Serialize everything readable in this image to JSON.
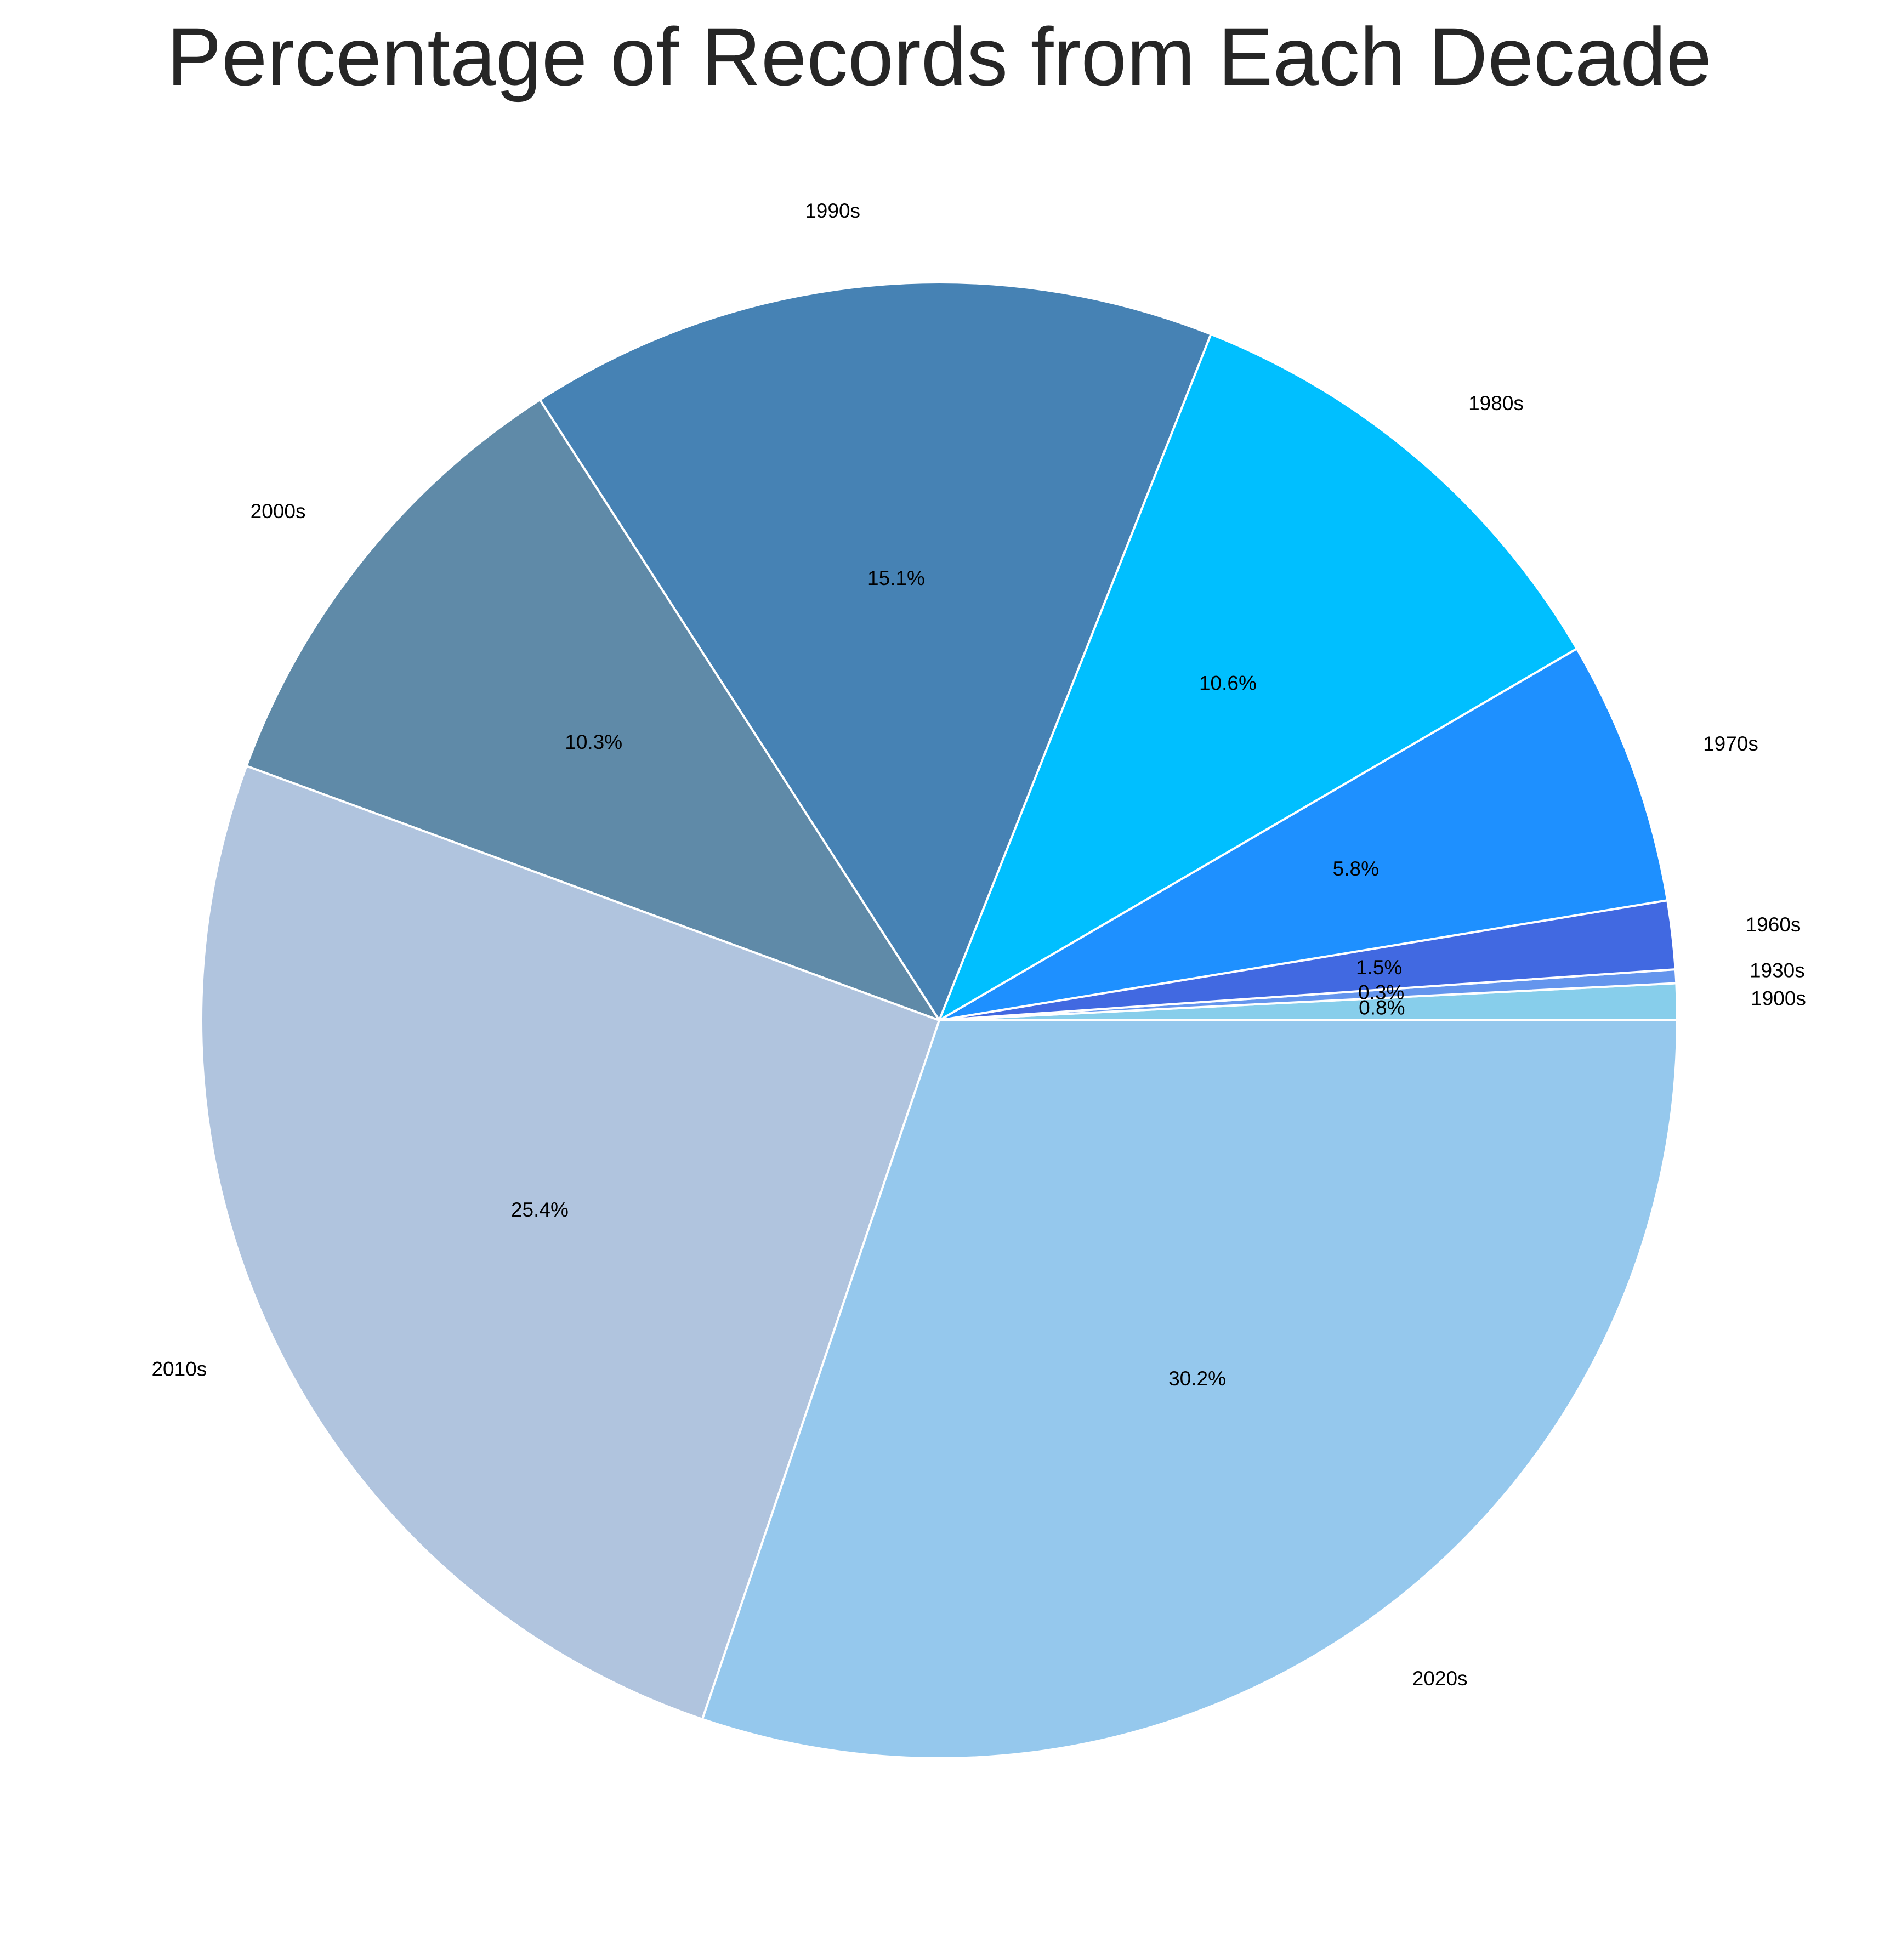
{
  "chart_data": {
    "type": "pie",
    "title": "Percentage of Records from Each Decade",
    "start_angle_deg": 0,
    "direction": "counterclockwise",
    "slices": [
      {
        "label": "1900s",
        "value": 0.8,
        "pct_text": "0.8%",
        "color": "#87CEEB"
      },
      {
        "label": "1930s",
        "value": 0.3,
        "pct_text": "0.3%",
        "color": "#6495ED"
      },
      {
        "label": "1960s",
        "value": 1.5,
        "pct_text": "1.5%",
        "color": "#4169E1"
      },
      {
        "label": "1970s",
        "value": 5.8,
        "pct_text": "5.8%",
        "color": "#1E90FF"
      },
      {
        "label": "1980s",
        "value": 10.6,
        "pct_text": "10.6%",
        "color": "#00BFFF"
      },
      {
        "label": "1990s",
        "value": 15.1,
        "pct_text": "15.1%",
        "color": "#4682B4"
      },
      {
        "label": "2000s",
        "value": 10.3,
        "pct_text": "10.3%",
        "color": "#5F8AA8"
      },
      {
        "label": "2010s",
        "value": 25.4,
        "pct_text": "25.4%",
        "color": "#B0C4DE"
      },
      {
        "label": "2020s",
        "value": 30.2,
        "pct_text": "30.2%",
        "color": "#95C8ED"
      }
    ]
  }
}
